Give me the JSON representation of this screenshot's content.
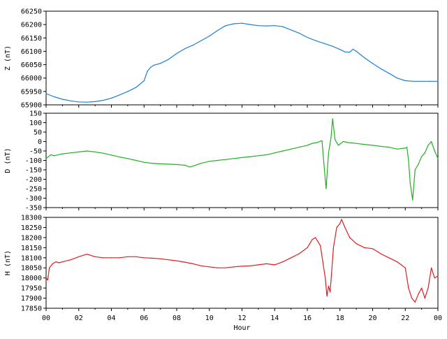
{
  "chart_data": [
    {
      "type": "line",
      "ylabel": "Z (nT)",
      "ylim": [
        65900,
        66250
      ],
      "yticks": [
        65900,
        65950,
        66000,
        66050,
        66100,
        66150,
        66200,
        66250
      ],
      "xlim": [
        0,
        24
      ],
      "color": "#1f7fd6",
      "x": [
        0,
        0.5,
        1,
        1.5,
        2,
        2.5,
        3,
        3.5,
        4,
        4.5,
        5,
        5.5,
        6,
        6.2,
        6.4,
        6.6,
        7,
        7.5,
        8,
        8.5,
        9,
        9.5,
        10,
        10.5,
        11,
        11.5,
        12,
        12.5,
        13,
        13.5,
        14,
        14.5,
        15,
        15.5,
        16,
        16.5,
        17,
        17.5,
        18,
        18.3,
        18.6,
        18.8,
        19,
        19.5,
        20,
        20.5,
        21,
        21.5,
        22,
        22.5,
        23,
        23.5,
        24
      ],
      "y": [
        65942,
        65930,
        65921,
        65915,
        65911,
        65910,
        65912,
        65917,
        65925,
        65937,
        65950,
        65965,
        65990,
        66025,
        66040,
        66048,
        66055,
        66070,
        66092,
        66110,
        66123,
        66140,
        66157,
        66178,
        66196,
        66203,
        66205,
        66200,
        66196,
        66195,
        66196,
        66192,
        66180,
        66168,
        66152,
        66140,
        66130,
        66120,
        66107,
        66098,
        66097,
        66108,
        66100,
        66076,
        66055,
        66035,
        66018,
        66000,
        65990,
        65988,
        65988,
        65988,
        65988
      ]
    },
    {
      "type": "line",
      "ylabel": "D (nT)",
      "ylim": [
        -350,
        150
      ],
      "yticks": [
        -350,
        -300,
        -250,
        -200,
        -150,
        -100,
        -50,
        0,
        50,
        100,
        150
      ],
      "xlim": [
        0,
        24
      ],
      "color": "#22b022",
      "x": [
        0,
        0.3,
        0.5,
        1,
        1.5,
        2,
        2.5,
        3,
        3.5,
        4,
        4.5,
        5,
        5.5,
        6,
        6.5,
        7,
        7.5,
        8,
        8.5,
        8.8,
        9,
        9.5,
        10,
        10.5,
        11,
        11.5,
        12,
        12.5,
        13,
        13.5,
        14,
        14.5,
        15,
        15.5,
        16,
        16.3,
        16.6,
        16.9,
        17.05,
        17.15,
        17.3,
        17.45,
        17.55,
        17.7,
        17.9,
        18.2,
        18.5,
        19,
        19.5,
        20,
        20.5,
        21,
        21.5,
        22,
        22.1,
        22.2,
        22.3,
        22.45,
        22.6,
        22.8,
        23,
        23.2,
        23.4,
        23.6,
        23.8,
        24
      ],
      "y": [
        -90,
        -70,
        -75,
        -65,
        -60,
        -55,
        -50,
        -55,
        -62,
        -72,
        -82,
        -90,
        -100,
        -110,
        -115,
        -118,
        -120,
        -122,
        -125,
        -135,
        -130,
        -115,
        -105,
        -100,
        -95,
        -90,
        -85,
        -80,
        -75,
        -70,
        -60,
        -50,
        -40,
        -30,
        -20,
        -10,
        -5,
        5,
        -150,
        -250,
        -60,
        20,
        120,
        10,
        -20,
        0,
        -5,
        -10,
        -15,
        -20,
        -25,
        -30,
        -40,
        -35,
        -30,
        -100,
        -220,
        -310,
        -150,
        -120,
        -80,
        -60,
        -20,
        0,
        -50,
        -90
      ]
    },
    {
      "type": "line",
      "xlabel": "Hour",
      "ylabel": "H (nT)",
      "ylim": [
        17850,
        18300
      ],
      "yticks": [
        17850,
        17900,
        17950,
        18000,
        18050,
        18100,
        18150,
        18200,
        18250,
        18300
      ],
      "xlim": [
        0,
        24
      ],
      "xticks": [
        "00",
        "02",
        "04",
        "06",
        "08",
        "10",
        "12",
        "14",
        "16",
        "18",
        "20",
        "22",
        "00"
      ],
      "color": "#e01c1c",
      "x": [
        0,
        0.1,
        0.2,
        0.4,
        0.6,
        0.8,
        1,
        1.5,
        2,
        2.5,
        3,
        3.5,
        4,
        4.5,
        5,
        5.5,
        6,
        6.5,
        7,
        7.5,
        8,
        8.5,
        9,
        9.5,
        10,
        10.5,
        11,
        11.5,
        12,
        12.5,
        13,
        13.5,
        14,
        14.5,
        15,
        15.5,
        16,
        16.3,
        16.5,
        16.8,
        17.1,
        17.2,
        17.3,
        17.4,
        17.6,
        17.8,
        18,
        18.1,
        18.3,
        18.6,
        19,
        19.5,
        20,
        20.5,
        21,
        21.5,
        22,
        22.2,
        22.4,
        22.6,
        22.8,
        23,
        23.2,
        23.4,
        23.6,
        23.8,
        24
      ],
      "y": [
        18000,
        17990,
        18050,
        18070,
        18080,
        18075,
        18080,
        18090,
        18105,
        18118,
        18105,
        18100,
        18100,
        18100,
        18105,
        18105,
        18100,
        18098,
        18095,
        18090,
        18085,
        18078,
        18070,
        18060,
        18055,
        18050,
        18050,
        18055,
        18058,
        18060,
        18065,
        18070,
        18065,
        18080,
        18100,
        18120,
        18150,
        18190,
        18200,
        18160,
        18000,
        17910,
        17960,
        17930,
        18150,
        18250,
        18270,
        18290,
        18250,
        18200,
        18170,
        18150,
        18145,
        18120,
        18100,
        18080,
        18050,
        17950,
        17900,
        17880,
        17920,
        17950,
        17900,
        17950,
        18050,
        18000,
        18010
      ]
    }
  ]
}
